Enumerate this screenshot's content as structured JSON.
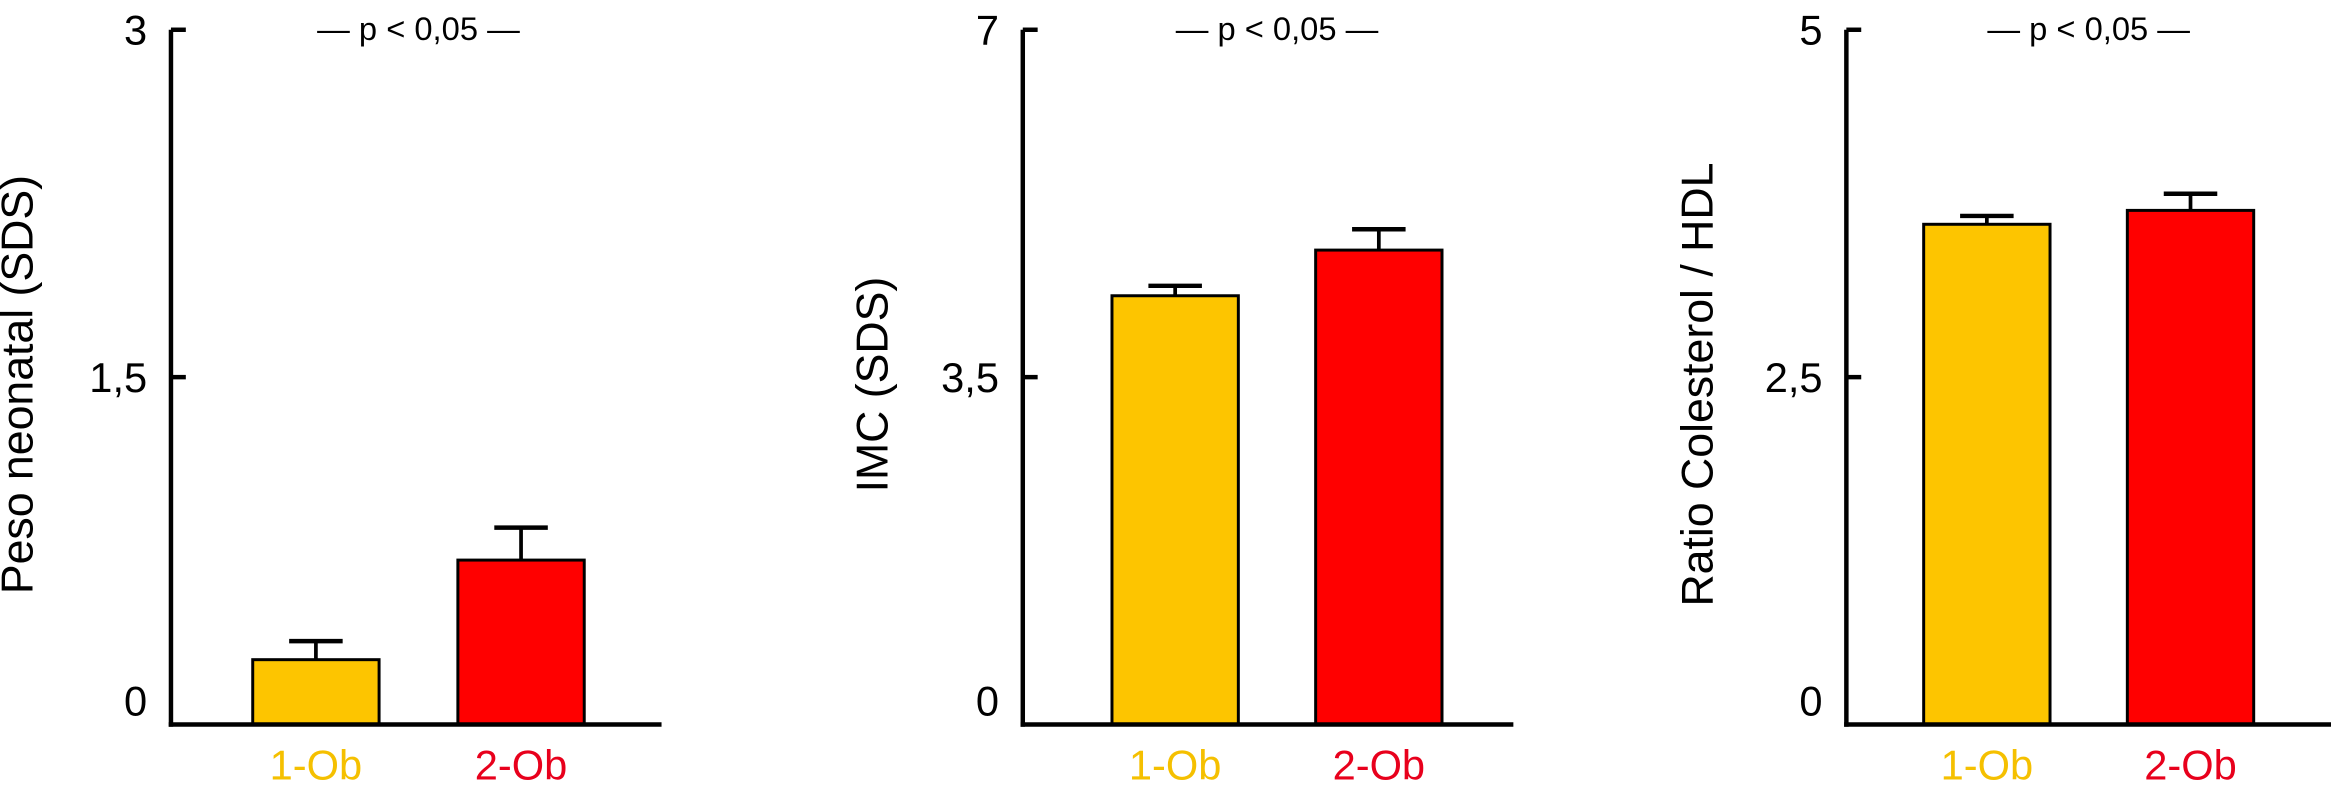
{
  "chart_data": [
    {
      "type": "bar",
      "title": "— p < 0,05 —",
      "ylabel": "Peso neonatal (SDS)",
      "xlabel": "",
      "categories": [
        "1-Ob",
        "2-Ob"
      ],
      "values": [
        0.28,
        0.71
      ],
      "errors": [
        0.08,
        0.14
      ],
      "ylim": [
        0,
        3
      ],
      "yticks": [
        0,
        1.5,
        3
      ],
      "ytick_labels": [
        "0",
        "1,5",
        "3"
      ],
      "grid": false
    },
    {
      "type": "bar",
      "title": "— p < 0,05 —",
      "ylabel": "IMC (SDS)",
      "xlabel": "",
      "categories": [
        "1-Ob",
        "2-Ob"
      ],
      "values": [
        4.32,
        4.78
      ],
      "errors": [
        0.1,
        0.21
      ],
      "ylim": [
        0,
        7
      ],
      "yticks": [
        0,
        3.5,
        7
      ],
      "ytick_labels": [
        "0",
        "3,5",
        "7"
      ],
      "grid": false
    },
    {
      "type": "bar",
      "title": "— p < 0,05 —",
      "ylabel": "Ratio Colesterol / HDL",
      "xlabel": "",
      "categories": [
        "1-Ob",
        "2-Ob"
      ],
      "values": [
        3.6,
        3.7
      ],
      "errors": [
        0.06,
        0.12
      ],
      "ylim": [
        0,
        5
      ],
      "yticks": [
        0,
        2.5,
        5
      ],
      "ytick_labels": [
        "0",
        "2,5",
        "5"
      ],
      "grid": false
    }
  ],
  "colors": {
    "1-Ob": "#FDC500",
    "2-Ob": "#FF0000",
    "label_1-Ob": "#F5C000",
    "label_2-Ob": "#E8001C"
  }
}
